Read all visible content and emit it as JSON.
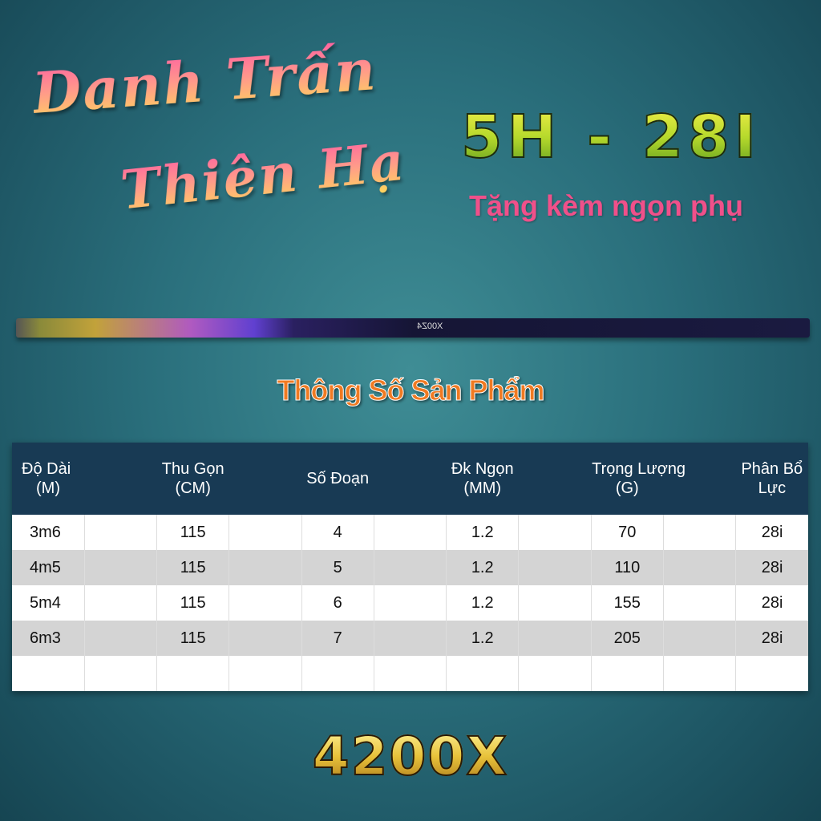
{
  "brand": {
    "line1": "Danh Trấn",
    "line2": "Thiên Hạ"
  },
  "model": "5H - 28I",
  "subtitle": "Tặng kèm ngọn phụ",
  "rod_label": "X00Z4",
  "section_title": "Thông Số Sản Phẩm",
  "table": {
    "headers": [
      [
        "Độ Dài",
        "(M)"
      ],
      [
        "Thu Gọn",
        "(CM)"
      ],
      [
        "Số Đoạn",
        ""
      ],
      [
        "Đk Ngọn",
        "(MM)"
      ],
      [
        "Trọng Lượng",
        "(G)"
      ],
      [
        "Phân Bổ",
        "Lực"
      ]
    ],
    "rows": [
      [
        "3m6",
        "115",
        "4",
        "1.2",
        "70",
        "28i"
      ],
      [
        "4m5",
        "115",
        "5",
        "1.2",
        "110",
        "28i"
      ],
      [
        "5m4",
        "115",
        "6",
        "1.2",
        "155",
        "28i"
      ],
      [
        "6m3",
        "115",
        "7",
        "1.2",
        "205",
        "28i"
      ]
    ]
  },
  "footer_model": "4200X"
}
